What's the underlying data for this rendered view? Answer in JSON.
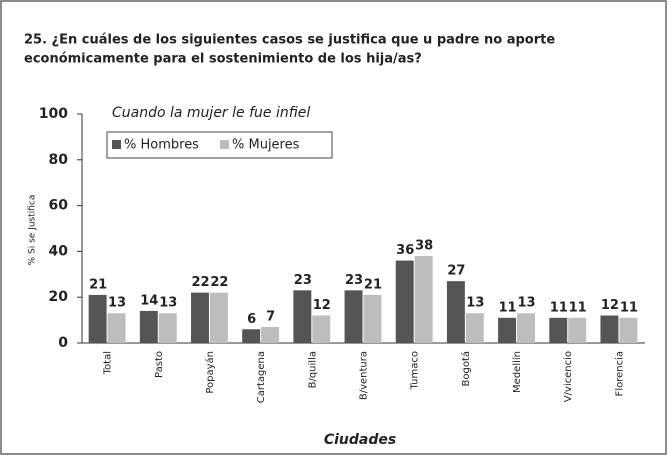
{
  "chart_data": {
    "type": "bar",
    "title": [
      "25. ¿En cuáles de los siguientes casos se justifica que u padre no aporte",
      "económicamente para el sostenimiento de los hija/as?"
    ],
    "subtitle": "Cuando la mujer le fue infiel",
    "y_label": "% Si se Justifica",
    "x_label": "Ciudades",
    "categories": [
      "Total",
      "Pasto",
      "Popayán",
      "Cartagena",
      "B/quilla",
      "B/ventura",
      "Tumaco",
      "Bogotá",
      "Medellín",
      "V/vicencio",
      "Florencia"
    ],
    "series": [
      {
        "name": "% Hombres",
        "color": "#555555",
        "values": [
          21,
          14,
          22,
          6,
          23,
          23,
          36,
          27,
          11,
          11,
          12
        ]
      },
      {
        "name": "% Mujeres",
        "color": "#bdbdbd",
        "values": [
          13,
          13,
          22,
          7,
          12,
          21,
          38,
          13,
          13,
          11,
          11
        ]
      }
    ],
    "ylim": [
      0,
      100
    ],
    "yticks": [
      0,
      20,
      40,
      60,
      80,
      100
    ]
  }
}
